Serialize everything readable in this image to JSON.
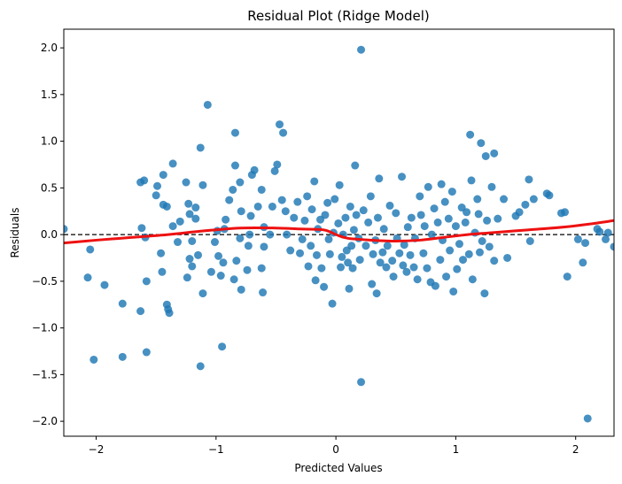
{
  "chart_data": {
    "type": "scatter",
    "title": "Residual Plot (Ridge Model)",
    "xlabel": "Predicted Values",
    "ylabel": "Residuals",
    "xlim": [
      -2.27,
      2.32
    ],
    "ylim": [
      -2.16,
      2.2
    ],
    "x_ticks": [
      -2,
      -1,
      0,
      1,
      2
    ],
    "x_tick_labels": [
      "−2",
      "−1",
      "0",
      "1",
      "2"
    ],
    "y_ticks": [
      -2.0,
      -1.5,
      -1.0,
      -0.5,
      0.0,
      0.5,
      1.0,
      1.5,
      2.0
    ],
    "y_tick_labels": [
      "−2.0",
      "−1.5",
      "−1.0",
      "−0.5",
      "0.0",
      "0.5",
      "1.0",
      "1.5",
      "2.0"
    ],
    "grid": false,
    "colors": {
      "points": "#1f77b4",
      "trend": "#ee1111",
      "reference": "#000000"
    },
    "reference_line": {
      "y": 0,
      "style": "dashed"
    },
    "trend_line": {
      "x": [
        -2.27,
        -2.0,
        -1.7,
        -1.4,
        -1.1,
        -0.8,
        -0.5,
        -0.3,
        -0.1,
        0.0,
        0.1,
        0.3,
        0.5,
        0.7,
        0.9,
        1.1,
        1.3,
        1.6,
        1.9,
        2.1,
        2.32
      ],
      "y": [
        -0.09,
        -0.06,
        -0.03,
        0.0,
        0.04,
        0.07,
        0.07,
        0.06,
        0.05,
        0.0,
        -0.04,
        -0.06,
        -0.07,
        -0.06,
        -0.03,
        0.0,
        0.02,
        0.05,
        0.08,
        0.11,
        0.15
      ]
    },
    "points": [
      [
        0.21,
        1.98
      ],
      [
        -1.07,
        1.39
      ],
      [
        -0.47,
        1.18
      ],
      [
        -0.44,
        1.09
      ],
      [
        -0.84,
        1.09
      ],
      [
        -1.13,
        0.93
      ],
      [
        1.12,
        1.07
      ],
      [
        1.21,
        0.98
      ],
      [
        1.32,
        0.87
      ],
      [
        0.16,
        0.74
      ],
      [
        -2.27,
        0.06
      ],
      [
        -2.05,
        -0.16
      ],
      [
        -2.07,
        -0.46
      ],
      [
        -1.93,
        -0.54
      ],
      [
        -1.78,
        -0.74
      ],
      [
        -2.02,
        -1.34
      ],
      [
        -1.78,
        -1.31
      ],
      [
        -1.58,
        -1.26
      ],
      [
        -1.63,
        -0.82
      ],
      [
        -1.41,
        -0.75
      ],
      [
        -1.4,
        -0.8
      ],
      [
        -1.39,
        -0.84
      ],
      [
        -1.58,
        -0.5
      ],
      [
        -1.45,
        -0.4
      ],
      [
        -1.46,
        -0.2
      ],
      [
        -1.62,
        0.07
      ],
      [
        -1.59,
        -0.03
      ],
      [
        -1.63,
        0.56
      ],
      [
        -1.6,
        0.58
      ],
      [
        -1.5,
        0.42
      ],
      [
        -1.49,
        0.52
      ],
      [
        -1.44,
        0.64
      ],
      [
        -1.36,
        0.76
      ],
      [
        -1.44,
        0.32
      ],
      [
        -1.41,
        0.3
      ],
      [
        -1.36,
        0.09
      ],
      [
        -1.32,
        -0.08
      ],
      [
        -1.3,
        0.14
      ],
      [
        -1.25,
        0.56
      ],
      [
        -1.23,
        0.33
      ],
      [
        -1.22,
        0.22
      ],
      [
        -1.17,
        0.29
      ],
      [
        -1.17,
        0.17
      ],
      [
        -1.2,
        -0.07
      ],
      [
        -1.22,
        -0.26
      ],
      [
        -1.24,
        -0.46
      ],
      [
        -1.2,
        -0.34
      ],
      [
        -1.15,
        -0.22
      ],
      [
        -1.11,
        -0.63
      ],
      [
        -1.11,
        0.53
      ],
      [
        -1.13,
        -1.41
      ],
      [
        -0.95,
        -1.2
      ],
      [
        -1.04,
        -0.4
      ],
      [
        -1.01,
        -0.08
      ],
      [
        -0.99,
        0.04
      ],
      [
        -0.98,
        -0.23
      ],
      [
        -0.96,
        -0.44
      ],
      [
        -0.94,
        -0.3
      ],
      [
        -0.93,
        0.06
      ],
      [
        -0.92,
        0.16
      ],
      [
        -0.89,
        0.37
      ],
      [
        -0.86,
        0.48
      ],
      [
        -0.84,
        0.74
      ],
      [
        -0.8,
        0.56
      ],
      [
        -0.79,
        0.25
      ],
      [
        -0.8,
        -0.04
      ],
      [
        -0.83,
        -0.28
      ],
      [
        -0.85,
        -0.48
      ],
      [
        -0.79,
        -0.59
      ],
      [
        -0.74,
        -0.38
      ],
      [
        -0.73,
        -0.12
      ],
      [
        -0.72,
        0.0
      ],
      [
        -0.71,
        0.2
      ],
      [
        -0.7,
        0.64
      ],
      [
        -0.68,
        0.69
      ],
      [
        -0.65,
        0.3
      ],
      [
        -0.62,
        0.48
      ],
      [
        -0.6,
        0.08
      ],
      [
        -0.6,
        -0.13
      ],
      [
        -0.62,
        -0.36
      ],
      [
        -0.61,
        -0.62
      ],
      [
        -0.55,
        0.0
      ],
      [
        -0.53,
        0.3
      ],
      [
        -0.51,
        0.68
      ],
      [
        -0.49,
        0.75
      ],
      [
        -0.45,
        0.37
      ],
      [
        -0.42,
        0.25
      ],
      [
        -0.41,
        0.0
      ],
      [
        -0.38,
        -0.17
      ],
      [
        -0.35,
        0.18
      ],
      [
        -0.32,
        0.35
      ],
      [
        -0.3,
        -0.2
      ],
      [
        -0.28,
        -0.05
      ],
      [
        -0.26,
        0.15
      ],
      [
        -0.24,
        0.41
      ],
      [
        -0.23,
        -0.34
      ],
      [
        -0.21,
        -0.12
      ],
      [
        -0.2,
        0.27
      ],
      [
        -0.18,
        0.57
      ],
      [
        -0.17,
        -0.49
      ],
      [
        -0.16,
        -0.22
      ],
      [
        -0.15,
        0.06
      ],
      [
        -0.13,
        0.16
      ],
      [
        -0.12,
        -0.36
      ],
      [
        -0.1,
        -0.56
      ],
      [
        -0.09,
        0.21
      ],
      [
        -0.07,
        0.34
      ],
      [
        -0.06,
        -0.05
      ],
      [
        -0.05,
        -0.21
      ],
      [
        -0.03,
        -0.74
      ],
      [
        -0.02,
        0.02
      ],
      [
        -0.01,
        0.38
      ],
      [
        0.02,
        0.12
      ],
      [
        0.03,
        0.53
      ],
      [
        0.04,
        -0.35
      ],
      [
        0.05,
        -0.24
      ],
      [
        0.06,
        0.0
      ],
      [
        0.08,
        0.18
      ],
      [
        0.09,
        -0.17
      ],
      [
        0.1,
        -0.3
      ],
      [
        0.11,
        -0.58
      ],
      [
        0.12,
        0.3
      ],
      [
        0.13,
        -0.12
      ],
      [
        0.14,
        -0.36
      ],
      [
        0.15,
        0.05
      ],
      [
        0.17,
        0.21
      ],
      [
        0.19,
        -0.04
      ],
      [
        0.2,
        -0.27
      ],
      [
        0.21,
        -1.58
      ],
      [
        0.23,
        0.26
      ],
      [
        0.25,
        -0.12
      ],
      [
        0.27,
        0.13
      ],
      [
        0.29,
        0.41
      ],
      [
        0.3,
        -0.53
      ],
      [
        0.31,
        -0.21
      ],
      [
        0.33,
        -0.06
      ],
      [
        0.34,
        -0.63
      ],
      [
        0.35,
        0.18
      ],
      [
        0.36,
        0.6
      ],
      [
        0.37,
        -0.3
      ],
      [
        0.39,
        -0.19
      ],
      [
        0.4,
        0.06
      ],
      [
        0.42,
        -0.35
      ],
      [
        0.43,
        -0.12
      ],
      [
        0.45,
        0.31
      ],
      [
        0.47,
        -0.28
      ],
      [
        0.48,
        -0.45
      ],
      [
        0.5,
        0.23
      ],
      [
        0.51,
        -0.04
      ],
      [
        0.53,
        -0.2
      ],
      [
        0.55,
        0.62
      ],
      [
        0.56,
        -0.33
      ],
      [
        0.57,
        -0.11
      ],
      [
        0.59,
        -0.4
      ],
      [
        0.6,
        0.08
      ],
      [
        0.62,
        -0.22
      ],
      [
        0.63,
        0.18
      ],
      [
        0.65,
        -0.35
      ],
      [
        0.66,
        -0.04
      ],
      [
        0.68,
        -0.48
      ],
      [
        0.7,
        0.41
      ],
      [
        0.71,
        0.21
      ],
      [
        0.73,
        -0.2
      ],
      [
        0.74,
        0.09
      ],
      [
        0.76,
        -0.36
      ],
      [
        0.77,
        0.51
      ],
      [
        0.79,
        -0.51
      ],
      [
        0.8,
        0.0
      ],
      [
        0.82,
        0.28
      ],
      [
        0.83,
        -0.55
      ],
      [
        0.85,
        0.13
      ],
      [
        0.87,
        -0.27
      ],
      [
        0.88,
        0.54
      ],
      [
        0.89,
        -0.06
      ],
      [
        0.91,
        0.35
      ],
      [
        0.92,
        -0.45
      ],
      [
        0.94,
        0.17
      ],
      [
        0.95,
        -0.17
      ],
      [
        0.97,
        0.46
      ],
      [
        0.98,
        -0.61
      ],
      [
        1.0,
        0.09
      ],
      [
        1.01,
        -0.37
      ],
      [
        1.03,
        -0.1
      ],
      [
        1.05,
        0.29
      ],
      [
        1.06,
        -0.27
      ],
      [
        1.08,
        0.13
      ],
      [
        1.09,
        0.24
      ],
      [
        1.11,
        -0.21
      ],
      [
        1.13,
        0.58
      ],
      [
        1.14,
        -0.48
      ],
      [
        1.16,
        0.02
      ],
      [
        1.18,
        0.38
      ],
      [
        1.19,
        0.22
      ],
      [
        1.2,
        -0.19
      ],
      [
        1.22,
        -0.07
      ],
      [
        1.24,
        -0.63
      ],
      [
        1.25,
        0.84
      ],
      [
        1.26,
        0.15
      ],
      [
        1.28,
        -0.13
      ],
      [
        1.3,
        0.51
      ],
      [
        1.32,
        -0.28
      ],
      [
        1.35,
        0.17
      ],
      [
        1.4,
        0.38
      ],
      [
        1.43,
        -0.25
      ],
      [
        1.5,
        0.2
      ],
      [
        1.53,
        0.24
      ],
      [
        1.58,
        0.32
      ],
      [
        1.61,
        0.59
      ],
      [
        1.62,
        -0.07
      ],
      [
        1.65,
        0.38
      ],
      [
        1.76,
        0.44
      ],
      [
        1.78,
        0.42
      ],
      [
        1.88,
        0.23
      ],
      [
        1.91,
        0.24
      ],
      [
        1.93,
        -0.45
      ],
      [
        2.02,
        -0.05
      ],
      [
        2.06,
        -0.3
      ],
      [
        2.08,
        -0.09
      ],
      [
        2.1,
        -1.97
      ],
      [
        2.18,
        0.06
      ],
      [
        2.2,
        0.03
      ],
      [
        2.25,
        -0.05
      ],
      [
        2.32,
        -0.13
      ],
      [
        2.27,
        0.02
      ]
    ]
  }
}
